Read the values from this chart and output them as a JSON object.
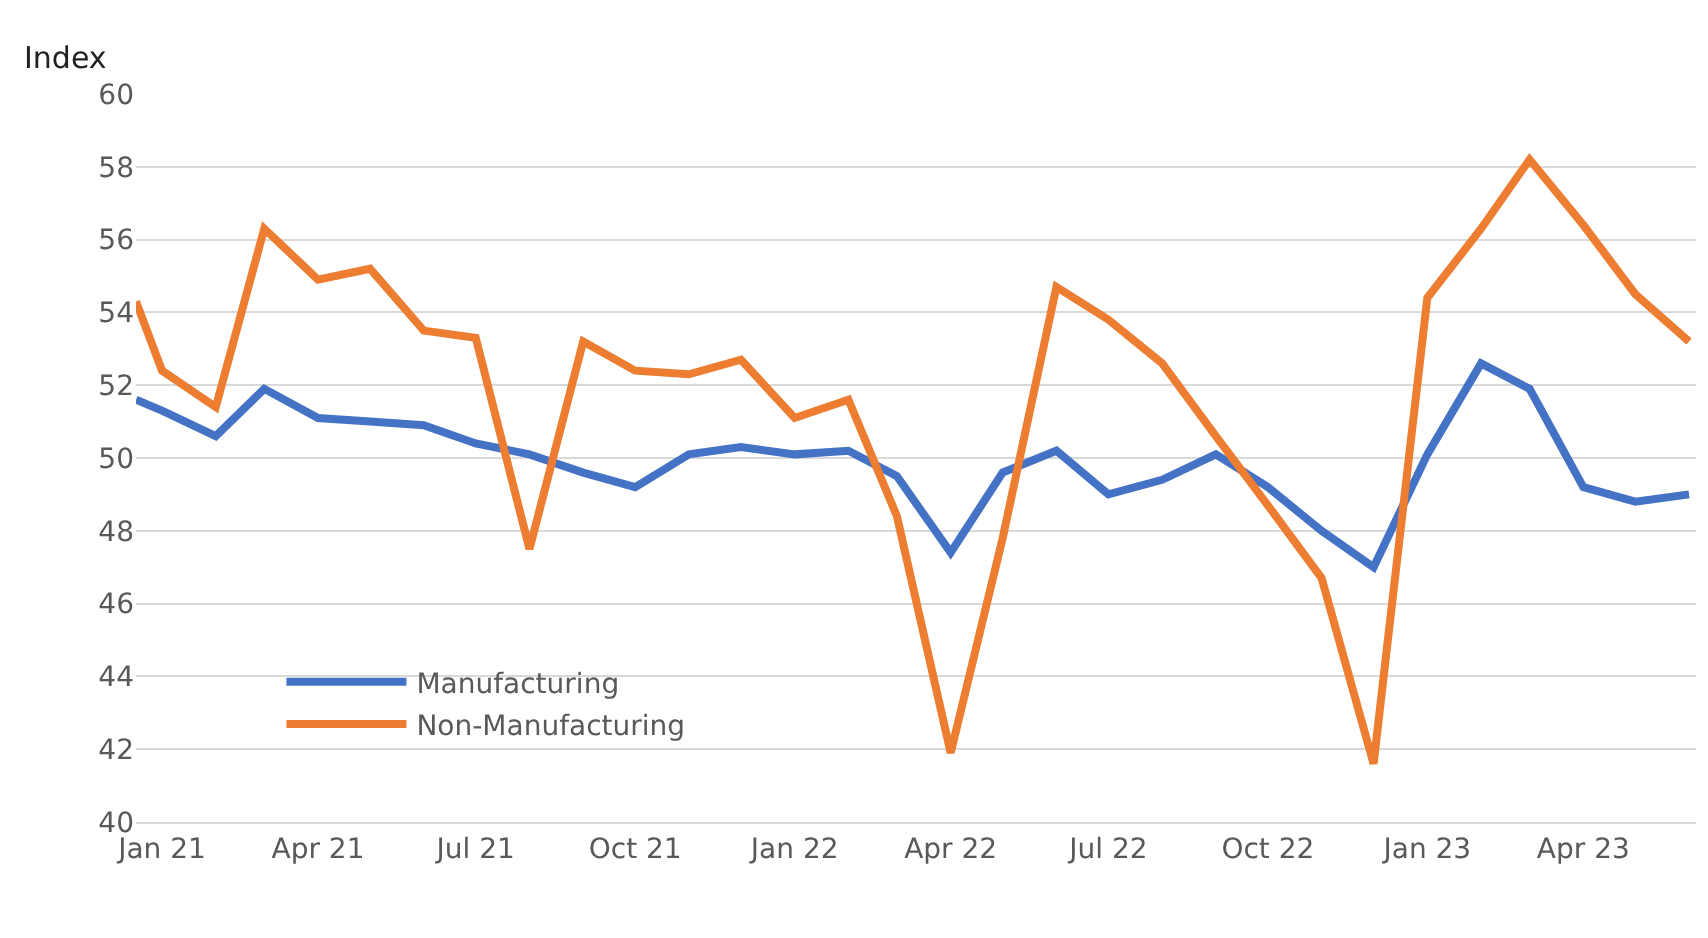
{
  "chart_data": {
    "type": "line",
    "ylabel": "Index",
    "x": [
      "2020-12-17",
      "2021-01-01",
      "2021-02-01",
      "2021-03-01",
      "2021-04-01",
      "2021-05-01",
      "2021-06-01",
      "2021-07-01",
      "2021-08-01",
      "2021-09-01",
      "2021-10-01",
      "2021-11-01",
      "2021-12-01",
      "2022-01-01",
      "2022-02-01",
      "2022-03-01",
      "2022-04-01",
      "2022-05-01",
      "2022-06-01",
      "2022-07-01",
      "2022-08-01",
      "2022-09-01",
      "2022-10-01",
      "2022-11-01",
      "2022-12-01",
      "2023-01-01",
      "2023-02-01",
      "2023-03-01",
      "2023-04-01",
      "2023-05-01",
      "2023-06-01"
    ],
    "series": [
      {
        "name": "Manufacturing",
        "color": "#4472c4",
        "values": [
          51.6,
          51.3,
          50.6,
          51.9,
          51.1,
          51.0,
          50.9,
          50.4,
          50.1,
          49.6,
          49.2,
          50.1,
          50.3,
          50.1,
          50.2,
          49.5,
          47.4,
          49.6,
          50.2,
          49.0,
          49.4,
          50.1,
          49.2,
          48.0,
          47.0,
          50.1,
          52.6,
          51.9,
          49.2,
          48.8,
          49.0
        ]
      },
      {
        "name": "Non-Manufacturing",
        "color": "#ed7d31",
        "values": [
          54.3,
          52.4,
          51.4,
          56.3,
          54.9,
          55.2,
          53.5,
          53.3,
          47.5,
          53.2,
          52.4,
          52.3,
          52.7,
          51.1,
          51.6,
          48.4,
          41.9,
          47.8,
          54.7,
          53.8,
          52.6,
          50.6,
          48.7,
          46.7,
          41.6,
          54.4,
          56.3,
          58.2,
          56.4,
          54.5,
          53.2
        ]
      }
    ],
    "xlim": [
      "2020-12-17",
      "2023-06-05"
    ],
    "xticks": [
      {
        "value": "2021-01-01",
        "label": "Jan 21"
      },
      {
        "value": "2021-04-01",
        "label": "Apr 21"
      },
      {
        "value": "2021-07-01",
        "label": "Jul 21"
      },
      {
        "value": "2021-10-01",
        "label": "Oct 21"
      },
      {
        "value": "2022-01-01",
        "label": "Jan 22"
      },
      {
        "value": "2022-04-01",
        "label": "Apr 22"
      },
      {
        "value": "2022-07-01",
        "label": "Jul 22"
      },
      {
        "value": "2022-10-01",
        "label": "Oct 22"
      },
      {
        "value": "2023-01-01",
        "label": "Jan 23"
      },
      {
        "value": "2023-04-01",
        "label": "Apr 23"
      }
    ],
    "ylim": [
      40,
      60
    ],
    "yticks": [
      40,
      42,
      44,
      46,
      48,
      50,
      52,
      54,
      56,
      58,
      60
    ],
    "grid": "y",
    "legend": "bottom left",
    "marker": "none",
    "line_style": "solid"
  }
}
